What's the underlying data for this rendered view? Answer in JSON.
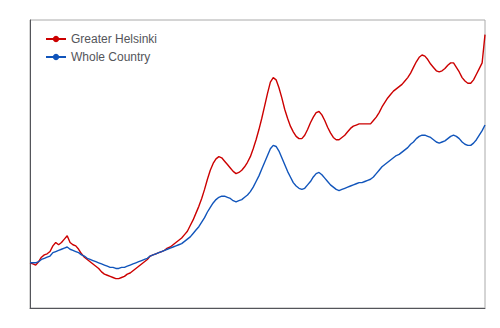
{
  "chart_data": {
    "type": "line",
    "series": [
      {
        "name": "Greater Helsinki",
        "color": "#cc0000",
        "values": [
          100,
          99,
          98,
          101,
          105,
          107,
          108,
          110,
          115,
          118,
          116,
          118,
          121,
          124,
          118,
          116,
          115,
          112,
          108,
          105,
          103,
          101,
          99,
          97,
          95,
          92,
          90,
          89,
          88,
          87,
          86,
          86,
          87,
          88,
          90,
          91,
          93,
          95,
          97,
          99,
          101,
          103,
          106,
          107,
          108,
          109,
          110,
          111,
          113,
          114,
          116,
          118,
          120,
          122,
          125,
          128,
          133,
          138,
          144,
          150,
          157,
          165,
          174,
          182,
          188,
          192,
          194,
          193,
          190,
          187,
          184,
          181,
          179,
          180,
          182,
          185,
          189,
          194,
          201,
          209,
          218,
          228,
          239,
          250,
          260,
          264,
          262,
          255,
          246,
          236,
          228,
          221,
          216,
          212,
          210,
          210,
          213,
          218,
          224,
          229,
          233,
          234,
          231,
          226,
          220,
          215,
          211,
          209,
          209,
          211,
          213,
          216,
          219,
          221,
          222,
          223,
          223,
          223,
          223,
          223,
          226,
          229,
          233,
          238,
          242,
          246,
          249,
          252,
          254,
          256,
          258,
          261,
          264,
          268,
          273,
          278,
          282,
          284,
          283,
          280,
          276,
          273,
          270,
          269,
          270,
          272,
          275,
          277,
          277,
          273,
          269,
          264,
          261,
          259,
          259,
          262,
          267,
          272,
          277,
          302
        ]
      },
      {
        "name": "Whole Country",
        "color": "#1155bb",
        "values": [
          100,
          100,
          100,
          101,
          103,
          104,
          105,
          106,
          109,
          110,
          111,
          112,
          113,
          114,
          112,
          111,
          110,
          109,
          107,
          106,
          104,
          103,
          102,
          101,
          100,
          99,
          98,
          97,
          96,
          96,
          95,
          95,
          96,
          96,
          97,
          98,
          99,
          100,
          101,
          102,
          103,
          104,
          106,
          107,
          108,
          109,
          110,
          111,
          112,
          113,
          114,
          115,
          116,
          117,
          119,
          121,
          123,
          126,
          129,
          132,
          136,
          140,
          145,
          149,
          153,
          156,
          158,
          159,
          159,
          158,
          157,
          155,
          154,
          155,
          156,
          158,
          160,
          163,
          167,
          172,
          177,
          183,
          189,
          195,
          201,
          204,
          203,
          199,
          193,
          187,
          181,
          176,
          171,
          168,
          166,
          165,
          166,
          169,
          172,
          176,
          179,
          180,
          178,
          175,
          172,
          169,
          167,
          165,
          164,
          165,
          166,
          167,
          168,
          169,
          170,
          171,
          171,
          172,
          173,
          174,
          176,
          179,
          182,
          185,
          187,
          189,
          191,
          193,
          195,
          196,
          198,
          200,
          202,
          205,
          207,
          210,
          212,
          213,
          213,
          212,
          211,
          209,
          207,
          206,
          207,
          208,
          210,
          212,
          213,
          212,
          210,
          207,
          205,
          204,
          204,
          206,
          209,
          213,
          217,
          222
        ]
      }
    ],
    "ylim": [
      60,
      315
    ],
    "legend": "upper left",
    "tick_labels": false,
    "grid": false
  }
}
